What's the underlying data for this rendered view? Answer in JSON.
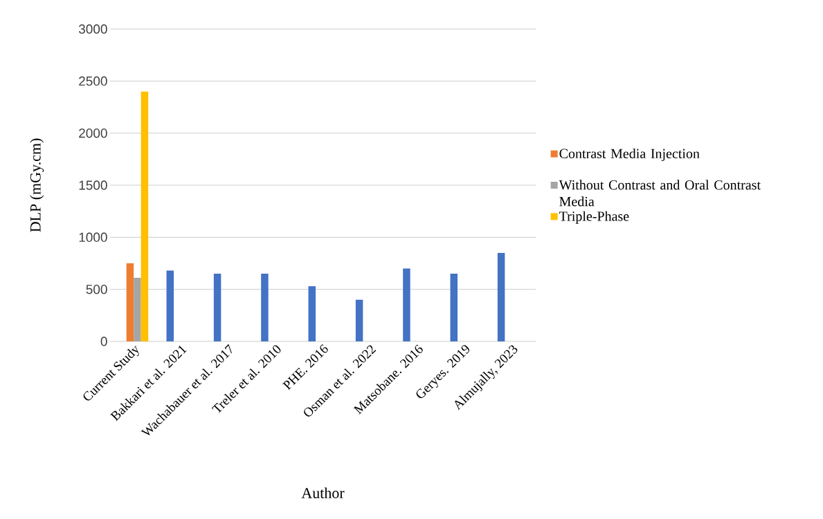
{
  "chart_data": {
    "type": "bar",
    "categories": [
      "Current Study",
      "Bakkari et al. 2021",
      "Wachabauer et al. 2017",
      "Treler et al. 2010",
      "PHE. 2016",
      "Osman et al. 2022",
      "Matsobane. 2016",
      "Geryes. 2019",
      "Almujally, 2023"
    ],
    "series": [
      {
        "color": "#4472c4",
        "values": [
          null,
          680,
          650,
          650,
          530,
          400,
          700,
          650,
          850
        ]
      },
      {
        "name": "Contrast Media Injection",
        "color": "#ed7d31",
        "values": [
          750,
          null,
          null,
          null,
          null,
          null,
          null,
          null,
          null
        ]
      },
      {
        "name": "Without Contrast and Oral Contrast Media",
        "color": "#a5a5a5",
        "values": [
          610,
          null,
          null,
          null,
          null,
          null,
          null,
          null,
          null
        ]
      },
      {
        "name": "Triple-Phase",
        "color": "#ffc000",
        "values": [
          2400,
          null,
          null,
          null,
          null,
          null,
          null,
          null,
          null
        ]
      }
    ],
    "xlabel": "Author",
    "ylabel": "DLP (mGy.cm)",
    "ylim": [
      0,
      3000
    ],
    "yticks": [
      0,
      500,
      1000,
      1500,
      2000,
      2500,
      3000
    ],
    "grid": "y",
    "legend": "right"
  }
}
